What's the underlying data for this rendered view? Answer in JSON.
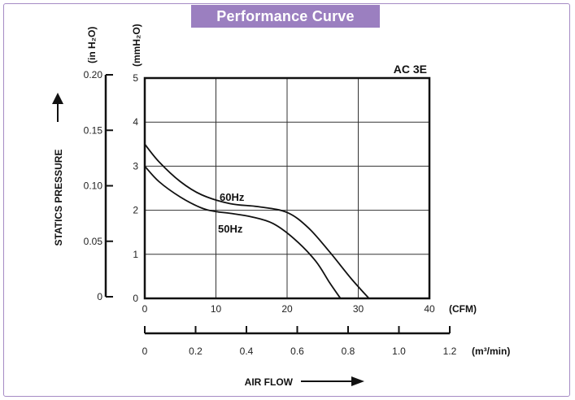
{
  "chart_data": {
    "type": "line",
    "title": "Performance Curve",
    "model": "AC 3E",
    "xlabel": "AIR FLOW",
    "ylabel": "STATICS PRESSURE",
    "x_unit_primary": "(CFM)",
    "x_unit_secondary": "(m³/min)",
    "y_unit_primary": "(mmH₂O)",
    "y_unit_secondary": "(in H₂O)",
    "xlim": [
      0,
      40
    ],
    "ylim": [
      0,
      5
    ],
    "x_ticks": [
      "0",
      "10",
      "20",
      "30",
      "40"
    ],
    "y_ticks": [
      "0",
      "1",
      "2",
      "3",
      "4",
      "5"
    ],
    "x2_ticks": [
      {
        "value": 0,
        "label": "0"
      },
      {
        "value": 0.2,
        "label": "0.2"
      },
      {
        "value": 0.4,
        "label": "0.4"
      },
      {
        "value": 0.6,
        "label": "0.6"
      },
      {
        "value": 0.8,
        "label": "0.8"
      },
      {
        "value": 1.0,
        "label": "1.0"
      },
      {
        "value": 1.2,
        "label": "1.2"
      }
    ],
    "y2_ticks": [
      {
        "value": 0,
        "label": "0"
      },
      {
        "value": 0.05,
        "label": "0.05"
      },
      {
        "value": 0.1,
        "label": "0.10"
      },
      {
        "value": 0.15,
        "label": "0.15"
      },
      {
        "value": 0.2,
        "label": "0.20"
      }
    ],
    "grid": true,
    "series": [
      {
        "name": "60Hz",
        "x": [
          0,
          2,
          5,
          8,
          12,
          16,
          20,
          23,
          26,
          29,
          31.5
        ],
        "y": [
          3.5,
          3.1,
          2.65,
          2.35,
          2.15,
          2.08,
          1.95,
          1.6,
          1.05,
          0.45,
          0
        ]
      },
      {
        "name": "50Hz",
        "x": [
          0,
          2,
          5,
          8,
          10,
          12,
          15,
          18,
          21,
          24,
          26,
          27.5
        ],
        "y": [
          3.0,
          2.65,
          2.3,
          2.05,
          1.97,
          1.93,
          1.85,
          1.7,
          1.35,
          0.85,
          0.35,
          0
        ]
      }
    ]
  }
}
